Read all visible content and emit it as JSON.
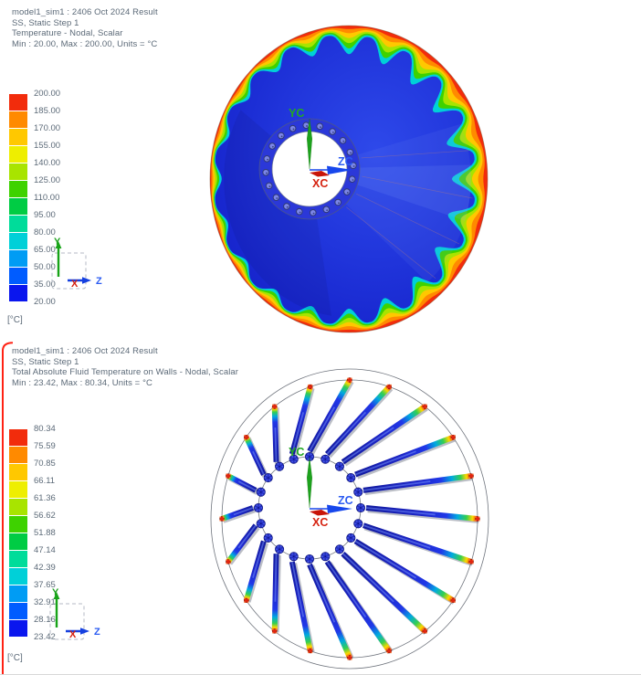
{
  "window": {
    "background": "#ffffff",
    "text_color": "#5c6a78",
    "selection_border_color": "#ff2214"
  },
  "legend_colors": [
    "#f22c0c",
    "#ff8a00",
    "#ffc800",
    "#eeee00",
    "#a8e400",
    "#3ed200",
    "#00cc44",
    "#00dc9a",
    "#00d0d8",
    "#009cf4",
    "#005cff",
    "#0a16ee"
  ],
  "panels": [
    {
      "header": [
        "model1_sim1 : 2406 Oct 2024 Result",
        "SS, Static Step 1",
        "Temperature - Nodal, Scalar",
        "Min : 20.00, Max : 200.00, Units = °C"
      ],
      "legend": {
        "unit": "[°C]",
        "labels": [
          "200.00",
          "185.00",
          "170.00",
          "155.00",
          "140.00",
          "125.00",
          "110.00",
          "95.00",
          "80.00",
          "65.00",
          "50.00",
          "35.00",
          "20.00"
        ]
      },
      "model_triad": {
        "x": "XC",
        "y": "YC",
        "z": "ZC"
      },
      "view_triad": {
        "x": "X",
        "y": "Y",
        "z": "Z"
      },
      "figure": {
        "type": "scalloped-disk",
        "scallops": 20,
        "hub_bolt_holes": 20,
        "min": "20.00",
        "max": "200.00"
      }
    },
    {
      "header": [
        "model1_sim1 : 2406 Oct 2024 Result",
        "SS, Static Step 1",
        "Total Absolute Fluid Temperature on Walls - Nodal, Scalar",
        "Min : 23.42, Max : 80.34, Units = °C"
      ],
      "legend": {
        "unit": "[°C]",
        "labels": [
          "80.34",
          "75.59",
          "70.85",
          "66.11",
          "61.36",
          "56.62",
          "51.88",
          "47.14",
          "42.39",
          "37.65",
          "32.91",
          "28.16",
          "23.42"
        ]
      },
      "model_triad": {
        "x": "XC",
        "y": "YC",
        "z": "ZC"
      },
      "view_triad": {
        "x": "X",
        "y": "Y",
        "z": "Z"
      },
      "figure": {
        "type": "radial-tube-wheel",
        "tubes": 20,
        "min": "23.42",
        "max": "80.34"
      }
    }
  ]
}
